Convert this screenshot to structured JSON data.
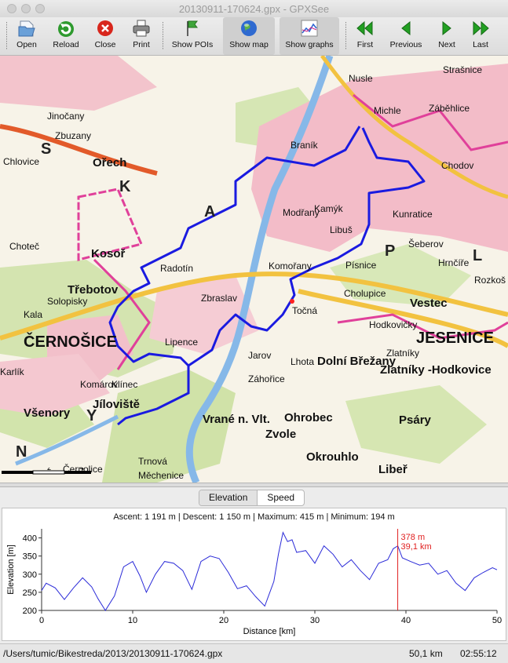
{
  "window": {
    "title": "20130911-170624.gpx - GPXSee"
  },
  "toolbar": {
    "open": "Open",
    "reload": "Reload",
    "close": "Close",
    "print": "Print",
    "show_pois": "Show POIs",
    "show_map": "Show map",
    "show_graphs": "Show graphs",
    "first": "First",
    "previous": "Previous",
    "next": "Next",
    "last": "Last"
  },
  "map": {
    "labels": [
      "Jinočany",
      "Zbuzany",
      "Ořech",
      "Chlovice",
      "Choteč",
      "Kosoř",
      "Třebotov",
      "Solopisky",
      "ČERNOŠICE",
      "Všenory",
      "Jíloviště",
      "Černolice",
      "Trnová",
      "Měchenice",
      "Vrané n. Vlt.",
      "Zvole",
      "Ohrobec",
      "Okrouhlo",
      "Libeř",
      "Psáry",
      "Dolní Břežany",
      "Zlatníky -Hodkovice",
      "Vestec",
      "JESENICE",
      "Modřany",
      "Komořany",
      "Lhota",
      "Kamýk",
      "Chodov",
      "Kunratice",
      "Libuš",
      "Písnice",
      "Cholupice",
      "Zbraslav",
      "Radotín",
      "Lipence",
      "Točná",
      "Jarov",
      "Záhořice",
      "Zlatníky",
      "Hodkovičky",
      "Braník",
      "Michle",
      "Nusle",
      "Strašnice",
      "Záběhlice",
      "Šeberov",
      "Hrnčíře",
      "Rozkoš",
      "Kala",
      "Karlík",
      "Klínec",
      "Komárov"
    ],
    "region_letters": [
      "S",
      "K",
      "A",
      "P",
      "L",
      "Y",
      "N"
    ],
    "scale": {
      "labels": [
        "2",
        "4"
      ]
    },
    "colors": {
      "track": "#1a1ae0",
      "urban": "#f2b4c0",
      "forest": "#c8dca0",
      "water": "#7fb2e6",
      "highway": "#f2c240",
      "border": "#e0409a"
    }
  },
  "graph_tabs": {
    "elevation": "Elevation",
    "speed": "Speed",
    "selected": "Elevation"
  },
  "graph_info": {
    "ascent_label": "Ascent:",
    "ascent": "1 191 m",
    "descent_label": "Descent:",
    "descent": "1 150 m",
    "max_label": "Maximum:",
    "max": "415 m",
    "min_label": "Minimum:",
    "min": "194 m"
  },
  "chart_data": {
    "type": "line",
    "xlabel": "Distance [km]",
    "ylabel": "Elevation [m]",
    "xlim": [
      0,
      50
    ],
    "ylim": [
      200,
      425
    ],
    "xticks": [
      0,
      10,
      20,
      30,
      40,
      50
    ],
    "yticks": [
      200,
      250,
      300,
      350,
      400
    ],
    "grid": false,
    "series": [
      {
        "x": [
          0,
          0.5,
          1.5,
          2.5,
          3.5,
          4.5,
          5.5,
          6.2,
          7,
          8,
          9,
          10,
          10.8,
          11.5,
          12.5,
          13.5,
          14.5,
          15.5,
          16.5,
          17.5,
          18.5,
          19.5,
          20.5,
          21.5,
          22.5,
          23.5,
          24.5,
          25.5,
          26,
          26.5,
          27,
          27.5,
          28,
          29,
          30,
          31,
          32,
          33,
          34,
          35,
          36,
          37,
          38,
          38.6,
          39.1,
          39.6,
          40.5,
          41.5,
          42.5,
          43.5,
          44.5,
          45.5,
          46.5,
          47.5,
          48.5,
          49.5,
          50
        ],
        "y": [
          255,
          275,
          262,
          230,
          262,
          290,
          265,
          232,
          200,
          240,
          320,
          335,
          295,
          250,
          300,
          335,
          330,
          310,
          258,
          335,
          350,
          343,
          305,
          260,
          268,
          238,
          212,
          280,
          355,
          415,
          390,
          395,
          360,
          365,
          330,
          378,
          355,
          320,
          340,
          310,
          285,
          330,
          340,
          370,
          378,
          345,
          335,
          325,
          330,
          300,
          310,
          275,
          255,
          290,
          305,
          318,
          312
        ]
      }
    ],
    "annotation": {
      "x_km": 39.1,
      "elevation_label": "378 m",
      "distance_label": "39,1 km"
    }
  },
  "status": {
    "path": "/Users/tumic/Bikestreda/2013/20130911-170624.gpx",
    "distance": "50,1 km",
    "time": "02:55:12"
  }
}
